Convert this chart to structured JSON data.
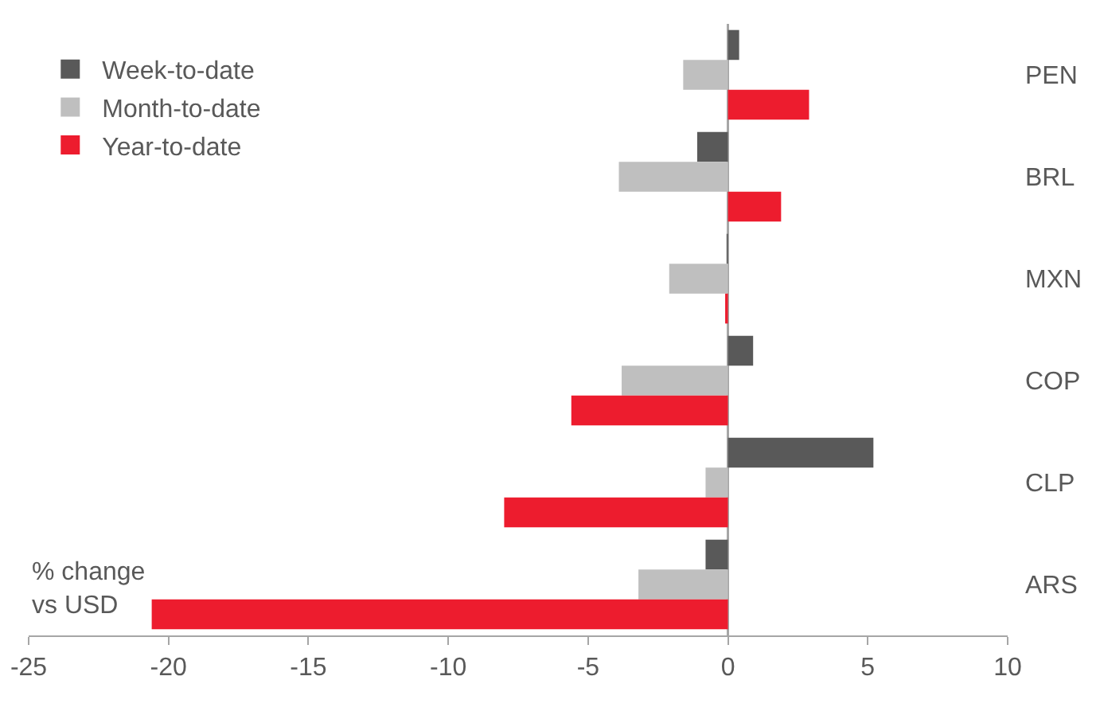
{
  "chart_data": {
    "type": "bar",
    "orientation": "horizontal",
    "categories": [
      "PEN",
      "BRL",
      "MXN",
      "COP",
      "CLP",
      "ARS"
    ],
    "series": [
      {
        "name": "Week-to-date",
        "color": "#595959",
        "values": [
          0.4,
          -1.1,
          -0.05,
          0.9,
          5.2,
          -0.8
        ]
      },
      {
        "name": "Month-to-date",
        "color": "#bfbfbf",
        "values": [
          -1.6,
          -3.9,
          -2.1,
          -3.8,
          -0.8,
          -3.2
        ]
      },
      {
        "name": "Year-to-date",
        "color": "#ed1c2e",
        "values": [
          2.9,
          1.9,
          -0.1,
          -5.6,
          -8.0,
          -20.6
        ]
      }
    ],
    "xlim": [
      -25,
      10
    ],
    "xticks": [
      -25,
      -20,
      -15,
      -10,
      -5,
      0,
      5,
      10
    ],
    "annotations": [
      "% change\nvs USD"
    ],
    "legend": "top left"
  }
}
